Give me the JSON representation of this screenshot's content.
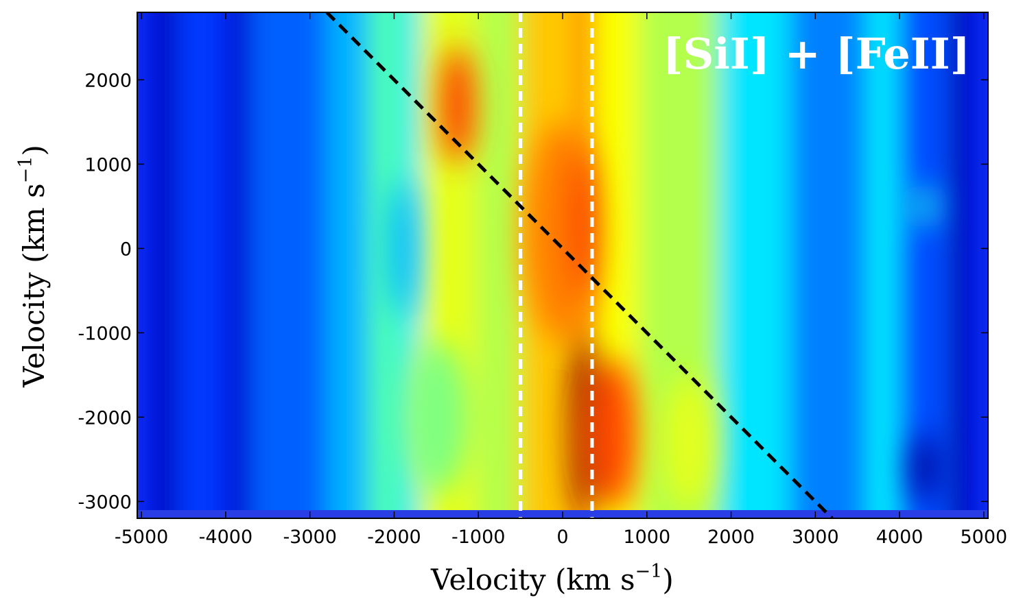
{
  "chart_data": {
    "type": "heatmap",
    "title": "",
    "panel_label": "[SiI] + [FeII]",
    "xlabel": "Velocity (km s",
    "ylabel": "Velocity (km s",
    "axis_unit_exponent": "−1",
    "xlim": [
      -5050,
      5050
    ],
    "ylim": [
      -3200,
      2800
    ],
    "x_ticks": [
      -5000,
      -4000,
      -3000,
      -2000,
      -1000,
      0,
      1000,
      2000,
      3000,
      4000,
      5000
    ],
    "y_ticks": [
      -3000,
      -2000,
      -1000,
      0,
      1000,
      2000
    ],
    "colormap": "jet",
    "intensity_columns": [
      {
        "x_from": -5050,
        "x_to": -4850,
        "level": 0.15
      },
      {
        "x_from": -4850,
        "x_to": -4600,
        "level": 0.05
      },
      {
        "x_from": -4600,
        "x_to": -4000,
        "level": 0.18
      },
      {
        "x_from": -4000,
        "x_to": -3700,
        "level": 0.08
      },
      {
        "x_from": -3700,
        "x_to": -2800,
        "level": 0.22
      },
      {
        "x_from": -2800,
        "x_to": -2300,
        "level": 0.3
      },
      {
        "x_from": -2300,
        "x_to": -1900,
        "level": 0.45
      },
      {
        "x_from": -1900,
        "x_to": -1700,
        "level": 0.35
      },
      {
        "x_from": -1700,
        "x_to": -1000,
        "level": 0.6
      },
      {
        "x_from": -1000,
        "x_to": -500,
        "level": 0.55
      },
      {
        "x_from": -500,
        "x_to": 200,
        "level": 0.68
      },
      {
        "x_from": 200,
        "x_to": 350,
        "level": 0.85
      },
      {
        "x_from": 350,
        "x_to": 900,
        "level": 0.62
      },
      {
        "x_from": 900,
        "x_to": 1850,
        "level": 0.55
      },
      {
        "x_from": 1850,
        "x_to": 2700,
        "level": 0.35
      },
      {
        "x_from": 2700,
        "x_to": 3600,
        "level": 0.25
      },
      {
        "x_from": 3600,
        "x_to": 4000,
        "level": 0.35
      },
      {
        "x_from": 4000,
        "x_to": 4600,
        "level": 0.2
      },
      {
        "x_from": 4600,
        "x_to": 4850,
        "level": 0.04
      },
      {
        "x_from": 4850,
        "x_to": 5050,
        "level": 0.15
      }
    ],
    "intensity_blobs": [
      {
        "x": -1250,
        "y": 1700,
        "rx": 200,
        "ry": 700,
        "level": 0.82
      },
      {
        "x": 0,
        "y": 200,
        "rx": 450,
        "ry": 1300,
        "level": 0.75
      },
      {
        "x": 230,
        "y": 300,
        "rx": 120,
        "ry": 900,
        "level": 0.88
      },
      {
        "x": 250,
        "y": -2100,
        "rx": 140,
        "ry": 1100,
        "level": 1.0
      },
      {
        "x": 600,
        "y": -2200,
        "rx": 300,
        "ry": 900,
        "level": 0.8
      },
      {
        "x": 1500,
        "y": -2300,
        "rx": 300,
        "ry": 800,
        "level": 0.6
      },
      {
        "x": -1500,
        "y": -2000,
        "rx": 400,
        "ry": 900,
        "level": 0.5
      },
      {
        "x": -1900,
        "y": 0,
        "rx": 150,
        "ry": 800,
        "level": 0.3
      },
      {
        "x": 4300,
        "y": -2600,
        "rx": 150,
        "ry": 400,
        "level": 0.02
      },
      {
        "x": 4300,
        "y": 500,
        "rx": 120,
        "ry": 250,
        "level": 0.4
      }
    ],
    "vertical_lines": [
      {
        "x": -500,
        "color": "#ffffff",
        "style": "dashed"
      },
      {
        "x": 350,
        "color": "#ffffff",
        "style": "dashed"
      }
    ],
    "diagonal_line": {
      "x": [
        -2800,
        3200
      ],
      "y": [
        2800,
        -3200
      ],
      "color": "#000000",
      "style": "dashed"
    }
  }
}
